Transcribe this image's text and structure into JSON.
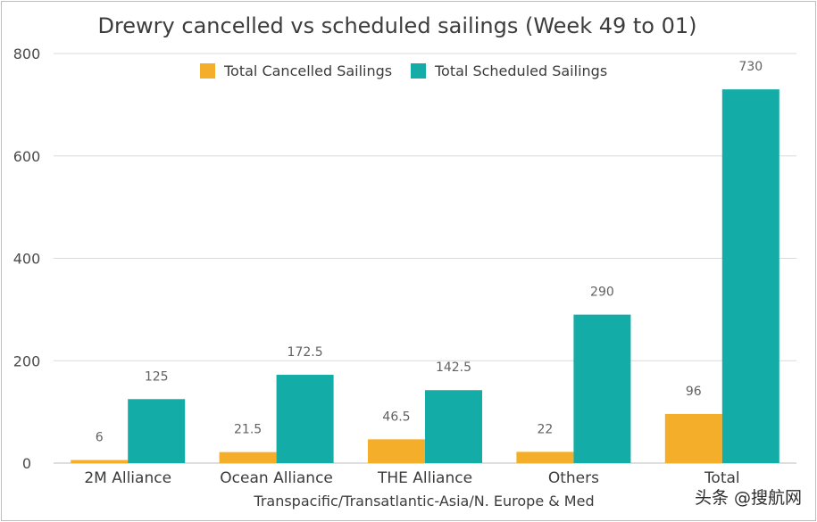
{
  "chart_data": {
    "type": "bar",
    "title": "Drewry cancelled vs scheduled sailings (Week 49 to 01)",
    "xlabel": "Transpacific/Transatlantic-Asia/N. Europe & Med",
    "ylabel": "",
    "ylim": [
      0,
      800
    ],
    "yticks": [
      0,
      200,
      400,
      600,
      800
    ],
    "grid": true,
    "legend_position": "top",
    "categories": [
      "2M Alliance",
      "Ocean Alliance",
      "THE Alliance",
      "Others",
      "Total"
    ],
    "series": [
      {
        "name": "Total Cancelled Sailings",
        "color": "#f5ae2a",
        "values": [
          6,
          21.5,
          46.5,
          22,
          96
        ]
      },
      {
        "name": "Total Scheduled Sailings",
        "color": "#13aca6",
        "values": [
          125,
          172.5,
          142.5,
          290,
          730
        ]
      }
    ]
  },
  "watermark": "头条 @搜航网"
}
